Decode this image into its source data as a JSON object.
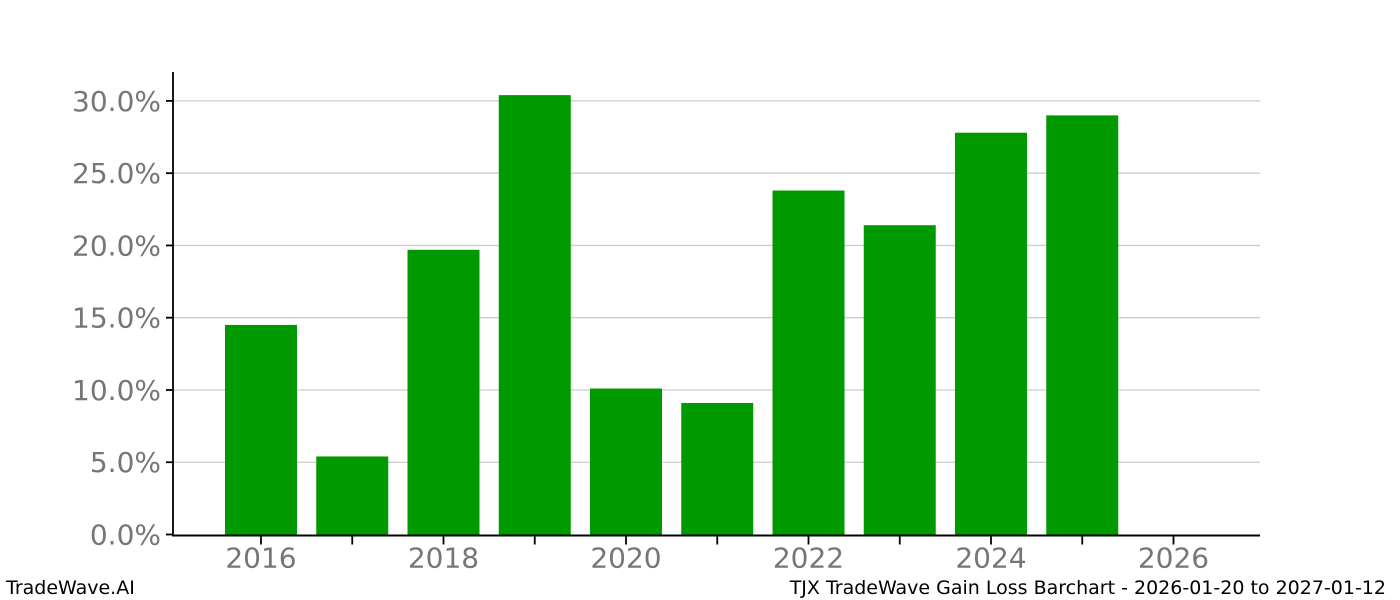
{
  "chart_data": {
    "type": "bar",
    "title": "",
    "xlabel": "",
    "ylabel": "",
    "categories": [
      "2016",
      "2017",
      "2018",
      "2019",
      "2020",
      "2021",
      "2022",
      "2023",
      "2024",
      "2025",
      "2026"
    ],
    "values": [
      14.5,
      5.4,
      19.7,
      30.4,
      10.1,
      9.1,
      23.8,
      21.4,
      27.8,
      29.0,
      0.0
    ],
    "value_unit": "percent",
    "ylim": [
      0,
      32
    ],
    "yticks": [
      0,
      5,
      10,
      15,
      20,
      25,
      30
    ],
    "ytick_labels": [
      "0.0%",
      "5.0%",
      "10.0%",
      "15.0%",
      "20.0%",
      "25.0%",
      "30.0%"
    ],
    "xtick_labels": [
      "2016",
      "2018",
      "2020",
      "2022",
      "2024",
      "2026"
    ],
    "grid": true,
    "legend": null
  },
  "colors": {
    "bar": "#009a00",
    "grid": "#cccccc",
    "tick_label": "#767676",
    "spine": "#000000"
  },
  "footer": {
    "left": "TradeWave.AI",
    "right": "TJX TradeWave Gain Loss Barchart - 2026-01-20 to 2027-01-12"
  }
}
